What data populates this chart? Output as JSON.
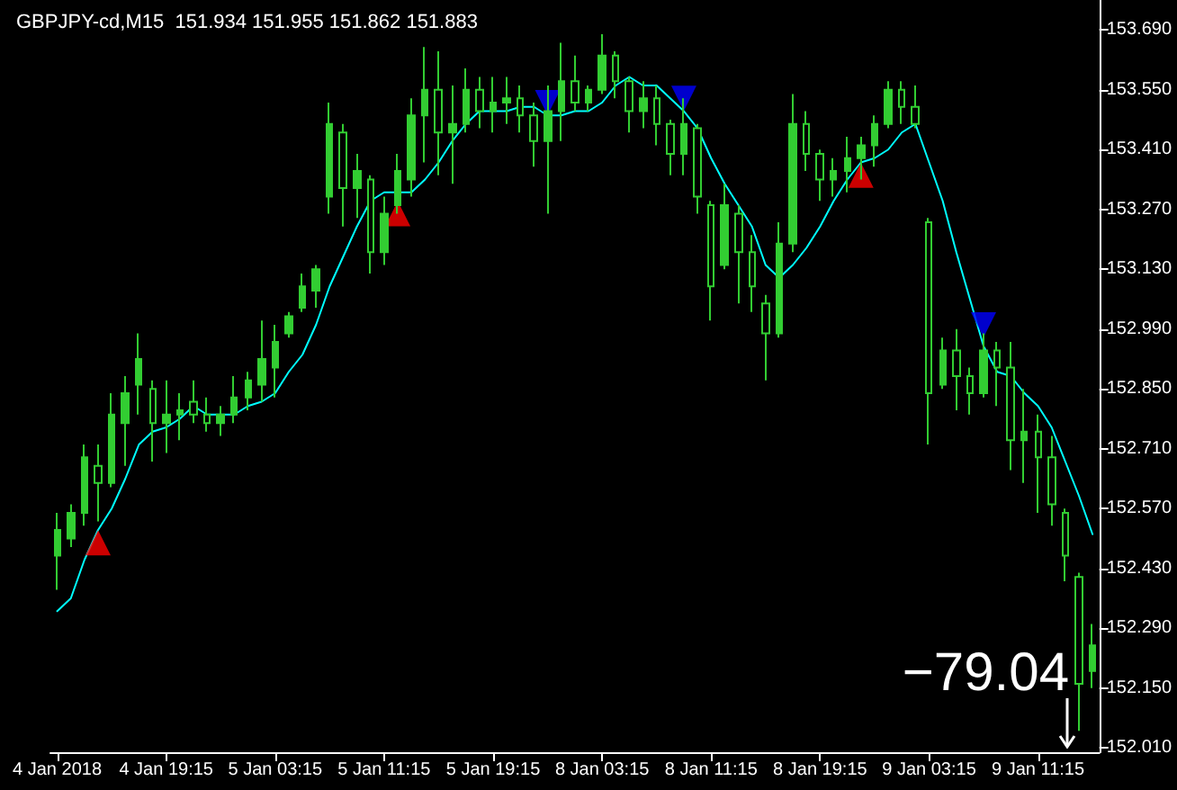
{
  "chart_data": {
    "type": "candlestick",
    "title": "GBPJPY-cd,M15  151.934 151.955 151.862 151.883",
    "categories": [
      "4 Jan 2018",
      null,
      null,
      null,
      null,
      null,
      null,
      null,
      "4 Jan 19:15",
      null,
      null,
      null,
      null,
      null,
      null,
      null,
      "5 Jan 03:15",
      null,
      null,
      null,
      null,
      null,
      null,
      null,
      "5 Jan 11:15",
      null,
      null,
      null,
      null,
      null,
      null,
      null,
      "5 Jan 19:15",
      null,
      null,
      null,
      null,
      null,
      null,
      null,
      "8 Jan 03:15",
      null,
      null,
      null,
      null,
      null,
      null,
      null,
      "8 Jan 11:15",
      null,
      null,
      null,
      null,
      null,
      null,
      null,
      "8 Jan 19:15",
      null,
      null,
      null,
      null,
      null,
      null,
      null,
      "9 Jan 03:15",
      null,
      null,
      null,
      null,
      null,
      null,
      null,
      "9 Jan 11:15",
      null,
      null,
      null,
      null
    ],
    "color": "#32cd32",
    "ohlc": [
      [
        152.46,
        152.56,
        152.38,
        152.52
      ],
      [
        152.5,
        152.58,
        152.48,
        152.56
      ],
      [
        152.56,
        152.72,
        152.53,
        152.69
      ],
      [
        152.67,
        152.72,
        152.54,
        152.63
      ],
      [
        152.63,
        152.84,
        152.62,
        152.79
      ],
      [
        152.77,
        152.88,
        152.67,
        152.84
      ],
      [
        152.86,
        152.98,
        152.79,
        152.92
      ],
      [
        152.85,
        152.87,
        152.68,
        152.77
      ],
      [
        152.77,
        152.87,
        152.7,
        152.79
      ],
      [
        152.79,
        152.84,
        152.73,
        152.8
      ],
      [
        152.82,
        152.87,
        152.77,
        152.79
      ],
      [
        152.79,
        152.83,
        152.75,
        152.77
      ],
      [
        152.77,
        152.81,
        152.74,
        152.79
      ],
      [
        152.79,
        152.88,
        152.77,
        152.83
      ],
      [
        152.83,
        152.89,
        152.8,
        152.87
      ],
      [
        152.86,
        153.01,
        152.82,
        152.92
      ],
      [
        152.9,
        153.0,
        152.83,
        152.96
      ],
      [
        152.98,
        153.03,
        152.97,
        153.02
      ],
      [
        153.04,
        153.12,
        153.03,
        153.09
      ],
      [
        153.08,
        153.14,
        153.04,
        153.13
      ],
      [
        153.3,
        153.52,
        153.26,
        153.47
      ],
      [
        153.45,
        153.47,
        153.23,
        153.32
      ],
      [
        153.32,
        153.4,
        153.25,
        153.36
      ],
      [
        153.34,
        153.35,
        153.12,
        153.17
      ],
      [
        153.17,
        153.3,
        153.14,
        153.26
      ],
      [
        153.28,
        153.4,
        153.26,
        153.36
      ],
      [
        153.34,
        153.53,
        153.3,
        153.49
      ],
      [
        153.49,
        153.65,
        153.38,
        153.55
      ],
      [
        153.55,
        153.64,
        153.35,
        153.45
      ],
      [
        153.45,
        153.56,
        153.33,
        153.47
      ],
      [
        153.47,
        153.6,
        153.45,
        153.55
      ],
      [
        153.55,
        153.58,
        153.46,
        153.5
      ],
      [
        153.5,
        153.58,
        153.45,
        153.52
      ],
      [
        153.52,
        153.58,
        153.47,
        153.53
      ],
      [
        153.53,
        153.56,
        153.45,
        153.49
      ],
      [
        153.49,
        153.52,
        153.37,
        153.43
      ],
      [
        153.43,
        153.56,
        153.26,
        153.5
      ],
      [
        153.5,
        153.66,
        153.43,
        153.57
      ],
      [
        153.57,
        153.63,
        153.5,
        153.52
      ],
      [
        153.52,
        153.56,
        153.5,
        153.55
      ],
      [
        153.55,
        153.68,
        153.54,
        153.63
      ],
      [
        153.63,
        153.64,
        153.53,
        153.57
      ],
      [
        153.57,
        153.58,
        153.45,
        153.5
      ],
      [
        153.5,
        153.57,
        153.46,
        153.53
      ],
      [
        153.53,
        153.56,
        153.42,
        153.47
      ],
      [
        153.47,
        153.48,
        153.35,
        153.4
      ],
      [
        153.4,
        153.53,
        153.35,
        153.47
      ],
      [
        153.46,
        153.47,
        153.26,
        153.3
      ],
      [
        153.28,
        153.29,
        153.01,
        153.09
      ],
      [
        153.14,
        153.33,
        153.13,
        153.28
      ],
      [
        153.26,
        153.28,
        153.05,
        153.17
      ],
      [
        153.17,
        153.21,
        153.03,
        153.09
      ],
      [
        153.05,
        153.07,
        152.87,
        152.98
      ],
      [
        152.98,
        153.24,
        152.97,
        153.19
      ],
      [
        153.19,
        153.54,
        153.17,
        153.47
      ],
      [
        153.47,
        153.5,
        153.36,
        153.4
      ],
      [
        153.4,
        153.41,
        153.29,
        153.34
      ],
      [
        153.34,
        153.39,
        153.3,
        153.36
      ],
      [
        153.36,
        153.44,
        153.31,
        153.39
      ],
      [
        153.39,
        153.44,
        153.34,
        153.42
      ],
      [
        153.42,
        153.49,
        153.37,
        153.47
      ],
      [
        153.47,
        153.57,
        153.46,
        153.55
      ],
      [
        153.55,
        153.57,
        153.47,
        153.51
      ],
      [
        153.51,
        153.56,
        153.46,
        153.47
      ],
      [
        153.24,
        153.25,
        152.72,
        152.84
      ],
      [
        152.86,
        152.97,
        152.85,
        152.94
      ],
      [
        152.94,
        152.99,
        152.8,
        152.88
      ],
      [
        152.88,
        152.9,
        152.79,
        152.84
      ],
      [
        152.84,
        152.98,
        152.83,
        152.94
      ],
      [
        152.94,
        152.96,
        152.81,
        152.9
      ],
      [
        152.9,
        152.96,
        152.66,
        152.73
      ],
      [
        152.73,
        152.85,
        152.63,
        152.75
      ],
      [
        152.75,
        152.79,
        152.56,
        152.69
      ],
      [
        152.69,
        152.74,
        152.53,
        152.58
      ],
      [
        152.56,
        152.57,
        152.4,
        152.46
      ],
      [
        152.41,
        152.42,
        152.05,
        152.16
      ],
      [
        152.19,
        152.3,
        152.15,
        152.25
      ]
    ],
    "series": [
      {
        "type": "line",
        "color": "#00ffff",
        "marker": "none",
        "values": [
          152.33,
          152.36,
          152.45,
          152.52,
          152.57,
          152.64,
          152.72,
          152.75,
          152.76,
          152.78,
          152.81,
          152.79,
          152.79,
          152.79,
          152.81,
          152.82,
          152.84,
          152.89,
          152.93,
          153.0,
          153.09,
          153.16,
          153.23,
          153.29,
          153.31,
          153.31,
          153.31,
          153.34,
          153.38,
          153.43,
          153.47,
          153.5,
          153.5,
          153.5,
          153.51,
          153.51,
          153.49,
          153.49,
          153.5,
          153.5,
          153.52,
          153.56,
          153.58,
          153.56,
          153.56,
          153.53,
          153.5,
          153.46,
          153.39,
          153.33,
          153.28,
          153.23,
          153.14,
          153.11,
          153.14,
          153.18,
          153.23,
          153.29,
          153.34,
          153.38,
          153.39,
          153.41,
          153.45,
          153.47,
          153.38,
          153.29,
          153.17,
          153.06,
          152.95,
          152.89,
          152.88,
          152.84,
          152.81,
          152.76,
          152.68,
          152.6,
          152.51
        ]
      },
      {
        "type": "scatter",
        "color": "#ff0000",
        "marker": "triangle",
        "values": [
          null,
          null,
          null,
          152.49,
          null,
          null,
          null,
          null,
          null,
          null,
          null,
          null,
          null,
          null,
          null,
          null,
          null,
          null,
          null,
          null,
          null,
          null,
          null,
          null,
          null,
          153.26,
          null,
          null,
          null,
          null,
          null,
          null,
          null,
          null,
          null,
          null,
          null,
          null,
          null,
          null,
          null,
          null,
          null,
          null,
          null,
          null,
          null,
          null,
          null,
          null,
          null,
          null,
          null,
          null,
          null,
          null,
          null,
          null,
          null,
          153.35,
          null,
          null,
          null,
          null,
          null,
          null,
          null,
          null,
          null,
          null,
          null,
          null,
          null,
          null,
          null,
          null,
          null
        ]
      },
      {
        "type": "scatter",
        "color": "#0000ff",
        "marker": "triangle",
        "values": [
          null,
          null,
          null,
          null,
          null,
          null,
          null,
          null,
          null,
          null,
          null,
          null,
          null,
          null,
          null,
          null,
          null,
          null,
          null,
          null,
          null,
          null,
          null,
          null,
          null,
          null,
          null,
          null,
          null,
          null,
          null,
          null,
          null,
          null,
          null,
          null,
          153.52,
          null,
          null,
          null,
          null,
          null,
          null,
          null,
          null,
          null,
          153.53,
          null,
          null,
          null,
          null,
          null,
          null,
          null,
          null,
          null,
          null,
          null,
          null,
          null,
          null,
          null,
          null,
          null,
          null,
          null,
          null,
          null,
          153.0,
          null,
          null,
          null,
          null,
          null,
          null,
          null,
          null
        ]
      }
    ],
    "ylim": [
      152.0,
      153.76
    ],
    "yticks": [
      {
        "value": 152.01,
        "label": "152.010"
      },
      {
        "value": 152.15,
        "label": "152.150"
      },
      {
        "value": 152.29,
        "label": "152.290"
      },
      {
        "value": 152.43,
        "label": "152.430"
      },
      {
        "value": 152.57,
        "label": "152.570"
      },
      {
        "value": 152.71,
        "label": "152.710"
      },
      {
        "value": 152.85,
        "label": "152.850"
      },
      {
        "value": 152.99,
        "label": "152.990"
      },
      {
        "value": 153.13,
        "label": "153.130"
      },
      {
        "value": 153.27,
        "label": "153.270"
      },
      {
        "value": 153.41,
        "label": "153.410"
      },
      {
        "value": 153.55,
        "label": "153.550"
      },
      {
        "value": 153.69,
        "label": "153.690"
      }
    ],
    "grid": false,
    "annotations": [
      "−79.04"
    ]
  }
}
